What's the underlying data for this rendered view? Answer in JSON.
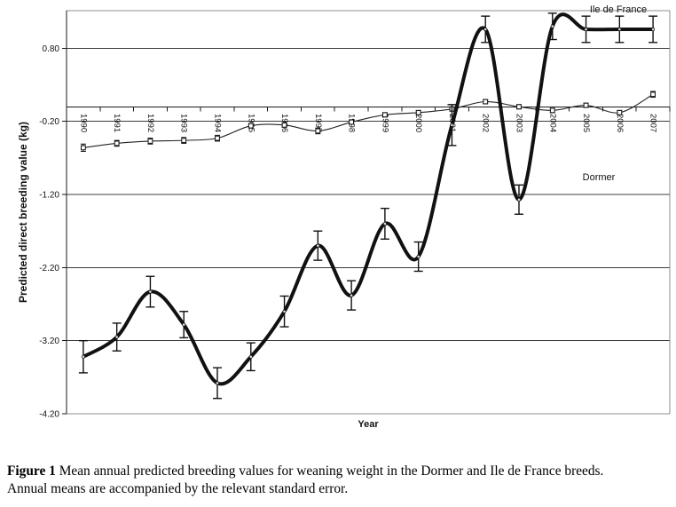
{
  "colors": {
    "background": "#ffffff",
    "line": "#111111",
    "grid": "#3c3c3c",
    "border": "#8c8c8c",
    "axis": "#1a1a1a",
    "marker_fill": "#ffffff"
  },
  "chart_data": {
    "type": "line",
    "title": "",
    "xlabel": "Year",
    "ylabel": "Predicted direct breeding value (kg)",
    "legend_position": "none",
    "grid": "horizontal",
    "categories": [
      "1990",
      "1991",
      "1992",
      "1993",
      "1994",
      "1995",
      "1996",
      "1997",
      "1998",
      "1999",
      "2000",
      "2001",
      "2002",
      "2003",
      "2004",
      "2005",
      "2006",
      "2007"
    ],
    "y_ticks": [
      0.8,
      -0.2,
      -1.2,
      -2.2,
      -3.2,
      -4.2
    ],
    "y_tick_labels": [
      "0.80",
      "-0.20",
      "-1.20",
      "-2.20",
      "-3.20",
      "-4.20"
    ],
    "ylim": [
      -4.2,
      1.315
    ],
    "series": [
      {
        "name": "Ile de France",
        "style": "thick-smooth",
        "values": [
          -3.42,
          -3.15,
          -2.53,
          -2.98,
          -3.78,
          -3.42,
          -2.8,
          -1.9,
          -2.58,
          -1.6,
          -2.05,
          -0.25,
          1.06,
          -1.27,
          1.1,
          1.06,
          1.06,
          1.06
        ],
        "se": [
          0.22,
          0.19,
          0.21,
          0.18,
          0.21,
          0.19,
          0.21,
          0.2,
          0.2,
          0.21,
          0.2,
          0.28,
          0.18,
          0.2,
          0.18,
          0.18,
          0.18,
          0.18
        ]
      },
      {
        "name": "Dormer",
        "style": "thin-marker",
        "values": [
          -0.56,
          -0.5,
          -0.47,
          -0.46,
          -0.43,
          -0.26,
          -0.25,
          -0.33,
          -0.21,
          -0.11,
          -0.08,
          -0.03,
          0.07,
          0.0,
          -0.05,
          0.02,
          -0.08,
          0.17
        ],
        "se": [
          0.05,
          0.04,
          0.04,
          0.04,
          0.04,
          0.03,
          0.03,
          0.04,
          0.03,
          0.03,
          0.03,
          0.03,
          0.03,
          0.03,
          0.03,
          0.03,
          0.03,
          0.04
        ]
      }
    ],
    "annotations": [
      {
        "text": "Ile de France"
      },
      {
        "text": "Dormer"
      }
    ]
  },
  "caption": {
    "prefix": "Figure 1",
    "line1_rest": " Mean annual predicted breeding values for weaning weight in the Dormer and Ile de France breeds.",
    "line2": "Annual means are accompanied by the relevant standard error."
  }
}
